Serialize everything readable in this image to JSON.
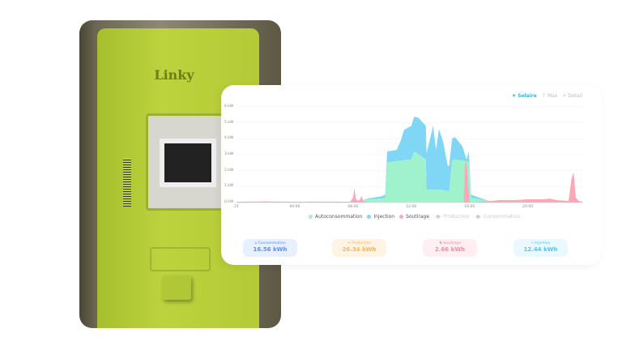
{
  "toolbar": {
    "options": [
      {
        "icon": "sun-icon",
        "label": "Solaire",
        "active": true
      },
      {
        "icon": "max-icon",
        "label": "Max",
        "active": false
      },
      {
        "icon": "plus-icon",
        "label": "Détail",
        "active": false
      }
    ]
  },
  "photo": {
    "logo_text": "Linky"
  },
  "chart_data": {
    "type": "area",
    "y_ticks": [
      "0 kW",
      "1 kW",
      "2 kW",
      "3 kW",
      "4 kW",
      "5 kW",
      "6 kW"
    ],
    "ylim": [
      0,
      6
    ],
    "x_ticks": [
      "21",
      "04:00",
      "08:00",
      "12:00",
      "16:00",
      "20:00"
    ],
    "x_tick_hours": [
      0,
      4,
      8,
      12,
      16,
      20
    ],
    "xlim_hours": [
      0,
      23.8
    ],
    "grid": true,
    "legend_placement": "bottom",
    "series": [
      {
        "name": "Autoconsommation",
        "color": "#9ff2cc",
        "stack": true,
        "x": [
          0,
          8.4,
          8.6,
          9,
          10,
          10.2,
          10.35,
          11,
          12,
          12.2,
          13,
          13.05,
          13.5,
          14,
          14.6,
          14.8,
          15,
          15.8,
          15.95,
          16.1,
          17,
          17.5,
          17.6
        ],
        "y": [
          0,
          0,
          0.1,
          0.2,
          0.25,
          0.3,
          2.5,
          2.6,
          2.7,
          3.2,
          2.7,
          0.8,
          0.8,
          0.8,
          0.7,
          2.6,
          2.7,
          2.6,
          2.5,
          0.3,
          0.15,
          0.05,
          0
        ]
      },
      {
        "name": "Injection",
        "color": "#7fd6f5",
        "stack": true,
        "x": [
          0,
          8.4,
          9,
          10,
          10.2,
          10.35,
          11,
          11.3,
          11.5,
          12,
          12.5,
          13,
          13.5,
          13.7,
          13.9,
          14.2,
          14.5,
          14.6,
          14.8,
          15,
          15.5,
          15.8,
          15.95,
          16.1,
          17,
          17.5,
          17.6
        ],
        "y": [
          0,
          0,
          0.05,
          0.15,
          0.2,
          0.7,
          0.7,
          1.3,
          1.9,
          2.1,
          2.3,
          2.1,
          4.0,
          2.5,
          3.8,
          3.0,
          1.6,
          1.6,
          1.4,
          1.4,
          0.9,
          0.1,
          0.7,
          0.2,
          0.05,
          0,
          0
        ]
      },
      {
        "name": "Soutirage",
        "color": "#fca8bb",
        "stack": false,
        "x": [
          0,
          2,
          4,
          6,
          7.8,
          8,
          8.1,
          8.2,
          8.4,
          8.6,
          8.7,
          9,
          15.6,
          15.7,
          15.8,
          16,
          17.5,
          18,
          19,
          20,
          21,
          21.5,
          22,
          22.8,
          23,
          23.15,
          23.3,
          23.5,
          23.8
        ],
        "y": [
          0.05,
          0.07,
          0.05,
          0.06,
          0.05,
          0.3,
          0.9,
          0.2,
          0.1,
          0.4,
          0.1,
          0,
          0,
          2.6,
          2.4,
          0,
          0.1,
          0.15,
          0.15,
          0.2,
          0.2,
          0.25,
          0.15,
          0.1,
          1.5,
          1.9,
          0.3,
          0.1,
          0.05
        ]
      },
      {
        "name": "Production",
        "color": "#cccccc",
        "hidden": true
      },
      {
        "name": "Consommation",
        "color": "#cccccc",
        "hidden": true
      }
    ]
  },
  "kpis": [
    {
      "icon": "home-icon",
      "label": "Consommation",
      "value": "16.56 kWh",
      "color": "#5b8ef5",
      "bg": "#e8f0ff"
    },
    {
      "icon": "sun-icon",
      "label": "Production",
      "value": "26.34 kWh",
      "color": "#f8b560",
      "bg": "#fff3e3"
    },
    {
      "icon": "tower-icon",
      "label": "Soutirage",
      "value": "2.66 kWh",
      "color": "#f28ca4",
      "bg": "#ffeef2"
    },
    {
      "icon": "bolt-icon",
      "label": "Injection",
      "value": "12.44 kWh",
      "color": "#5cc3ee",
      "bg": "#eaf8ff"
    }
  ]
}
